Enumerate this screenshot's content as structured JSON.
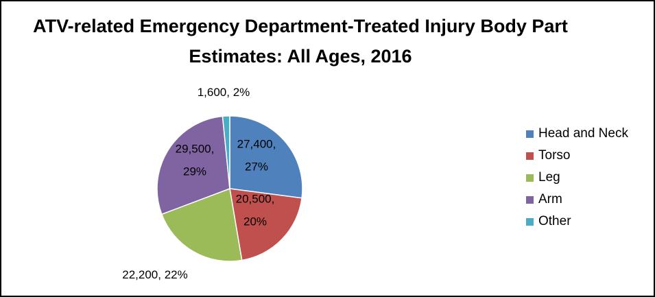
{
  "chart_data": {
    "type": "pie",
    "title_line1": "ATV-related Emergency Department-Treated Injury Body Part",
    "title_line2": "Estimates: All Ages, 2016",
    "slices": [
      {
        "name": "Head and Neck",
        "value": 27400,
        "percent": 27,
        "color": "#4F81BD",
        "label_lines": [
          "27,400,",
          "27%"
        ]
      },
      {
        "name": "Torso",
        "value": 20500,
        "percent": 20,
        "color": "#C0504D",
        "label_lines": [
          "20,500,",
          "20%"
        ]
      },
      {
        "name": "Leg",
        "value": 22200,
        "percent": 22,
        "color": "#9BBB59",
        "label_lines": [
          "22,200, 22%"
        ]
      },
      {
        "name": "Arm",
        "value": 29500,
        "percent": 29,
        "color": "#8064A2",
        "label_lines": [
          "29,500,",
          "29%"
        ]
      },
      {
        "name": "Other",
        "value": 1600,
        "percent": 2,
        "color": "#4BACC6",
        "label_lines": [
          "1,600, 2%"
        ]
      }
    ],
    "legend_position": "right"
  }
}
